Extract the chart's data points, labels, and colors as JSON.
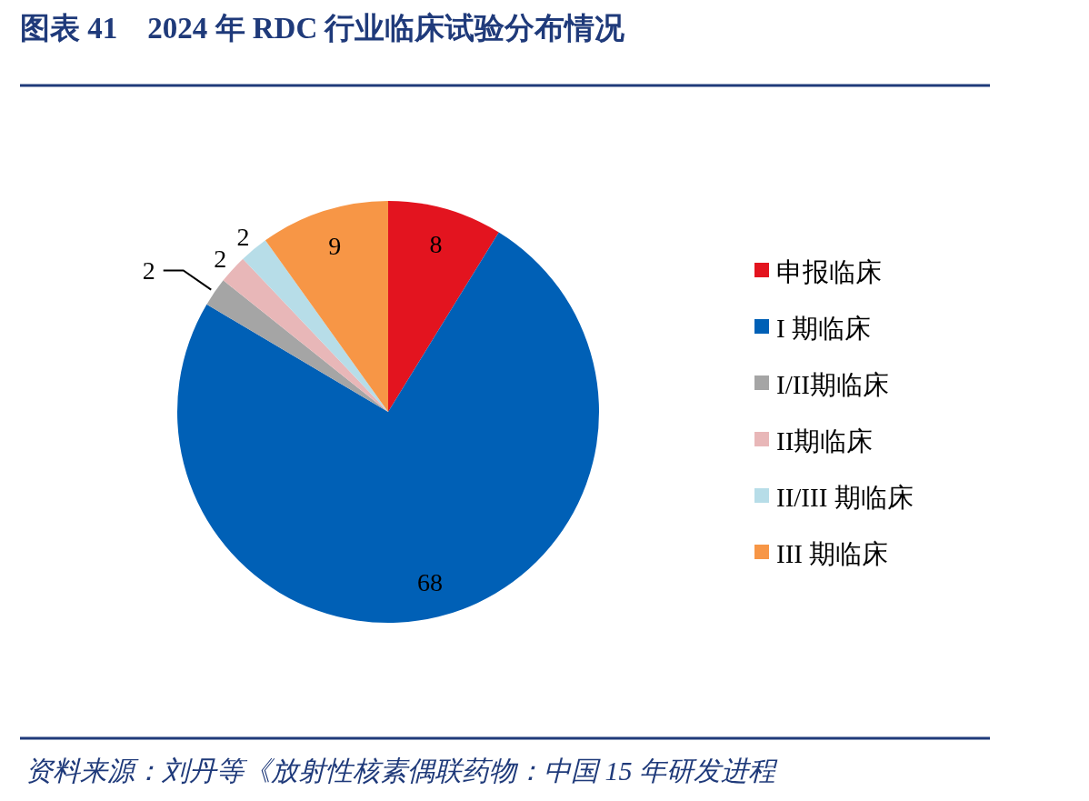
{
  "chart_data": {
    "type": "pie",
    "title": "图表 41　2024 年 RDC 行业临床试验分布情况",
    "categories": [
      "申报临床",
      "I 期临床",
      "I/II期临床",
      "II期临床",
      "II/III 期临床",
      "III 期临床"
    ],
    "values": [
      8,
      68,
      2,
      2,
      2,
      9
    ],
    "colors": [
      "#e3141f",
      "#0060b6",
      "#a5a5a5",
      "#e8b7b8",
      "#b7dde8",
      "#f79646"
    ],
    "data_labels": true,
    "legend": "right",
    "annotations": [
      "资料来源：刘丹等《放射性核素偶联药物：中国 15 年研发进程"
    ]
  }
}
